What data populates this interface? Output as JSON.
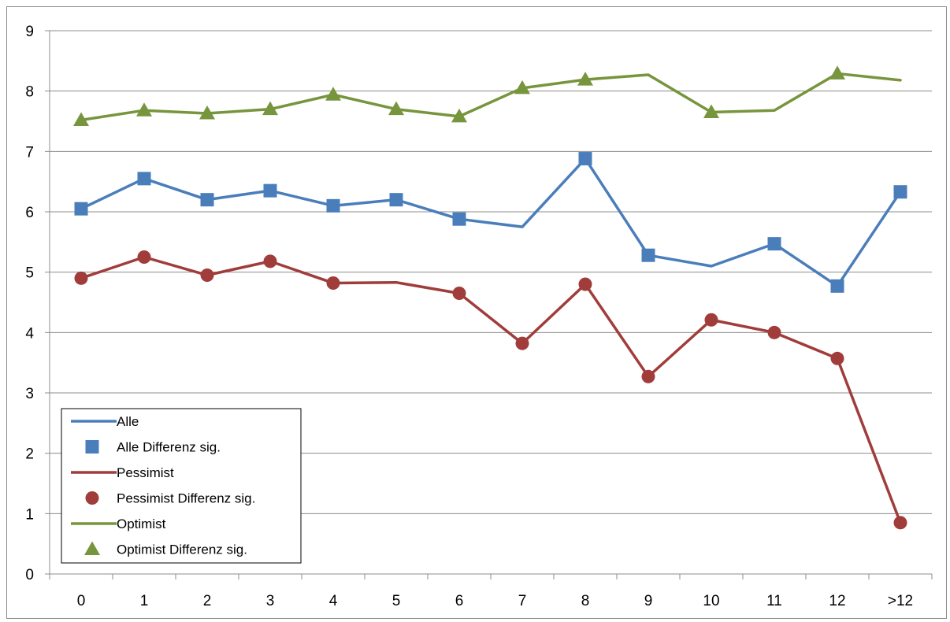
{
  "chart_data": {
    "type": "line",
    "categories": [
      "0",
      "1",
      "2",
      "3",
      "4",
      "5",
      "6",
      "7",
      "8",
      "9",
      "10",
      "11",
      "12",
      ">12"
    ],
    "ylim": [
      0,
      9
    ],
    "yticks": [
      0,
      1,
      2,
      3,
      4,
      5,
      6,
      7,
      8,
      9
    ],
    "grid": "horizontal",
    "legend_position": "bottom-left",
    "series": [
      {
        "name": "Alle",
        "color": "#4a7ebb",
        "values": [
          6.05,
          6.55,
          6.2,
          6.35,
          6.1,
          6.2,
          5.88,
          5.75,
          6.88,
          5.28,
          5.1,
          5.47,
          4.77,
          6.33
        ],
        "marker_name": "Alle Differenz sig.",
        "marker": "square",
        "significant": [
          true,
          true,
          true,
          true,
          true,
          true,
          true,
          false,
          true,
          true,
          false,
          true,
          true,
          true
        ]
      },
      {
        "name": "Pessimist",
        "color": "#a03d3b",
        "values": [
          4.9,
          5.25,
          4.95,
          5.18,
          4.82,
          4.83,
          4.65,
          3.82,
          4.8,
          3.27,
          4.21,
          4.0,
          3.57,
          0.85
        ],
        "marker_name": "Pessimist Differenz sig.",
        "marker": "circle",
        "significant": [
          true,
          true,
          true,
          true,
          true,
          false,
          true,
          true,
          true,
          true,
          true,
          true,
          true,
          true
        ]
      },
      {
        "name": "Optimist",
        "color": "#77953d",
        "values": [
          7.52,
          7.68,
          7.63,
          7.7,
          7.94,
          7.7,
          7.58,
          8.05,
          8.19,
          8.27,
          7.65,
          7.68,
          8.29,
          8.18
        ],
        "marker_name": "Optimist Differenz sig.",
        "marker": "triangle",
        "significant": [
          true,
          true,
          true,
          true,
          true,
          true,
          true,
          true,
          true,
          false,
          true,
          false,
          true,
          false
        ]
      }
    ]
  }
}
